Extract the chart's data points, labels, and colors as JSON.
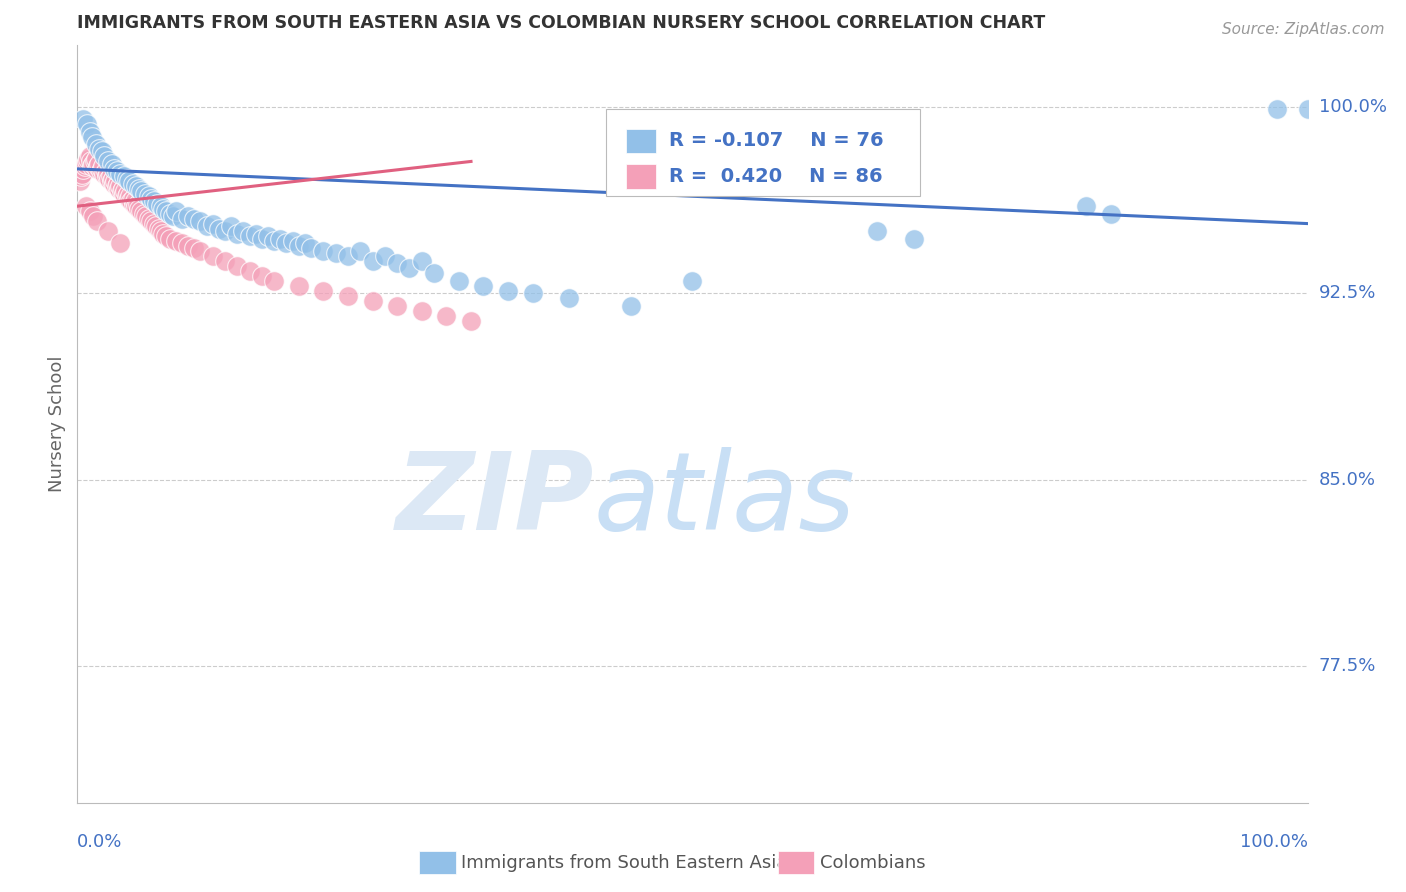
{
  "title": "IMMIGRANTS FROM SOUTH EASTERN ASIA VS COLOMBIAN NURSERY SCHOOL CORRELATION CHART",
  "source": "Source: ZipAtlas.com",
  "ylabel": "Nursery School",
  "ytick_labels": [
    "100.0%",
    "92.5%",
    "85.0%",
    "77.5%"
  ],
  "ytick_values": [
    1.0,
    0.925,
    0.85,
    0.775
  ],
  "xrange": [
    0.0,
    1.0
  ],
  "yrange": [
    0.72,
    1.025
  ],
  "legend_blue_r": "-0.107",
  "legend_blue_n": "76",
  "legend_pink_r": "0.420",
  "legend_pink_n": "86",
  "blue_color": "#92C0E8",
  "pink_color": "#F4A0B8",
  "blue_line_color": "#4472C4",
  "pink_line_color": "#E06080",
  "axis_color": "#4472c4",
  "grid_color": "#cccccc",
  "title_color": "#333333",
  "watermark_color": "#dce8f5",
  "blue_scatter_x": [
    0.005,
    0.008,
    0.01,
    0.012,
    0.015,
    0.018,
    0.02,
    0.022,
    0.025,
    0.028,
    0.03,
    0.032,
    0.035,
    0.038,
    0.04,
    0.042,
    0.045,
    0.048,
    0.05,
    0.052,
    0.055,
    0.058,
    0.06,
    0.062,
    0.065,
    0.068,
    0.07,
    0.072,
    0.075,
    0.078,
    0.08,
    0.085,
    0.09,
    0.095,
    0.1,
    0.105,
    0.11,
    0.115,
    0.12,
    0.125,
    0.13,
    0.135,
    0.14,
    0.145,
    0.15,
    0.155,
    0.16,
    0.165,
    0.17,
    0.175,
    0.18,
    0.185,
    0.19,
    0.2,
    0.21,
    0.22,
    0.23,
    0.24,
    0.25,
    0.26,
    0.27,
    0.28,
    0.29,
    0.31,
    0.33,
    0.35,
    0.37,
    0.4,
    0.45,
    0.5,
    0.65,
    0.68,
    0.82,
    0.84,
    0.975,
    1.0
  ],
  "blue_scatter_y": [
    0.995,
    0.993,
    0.99,
    0.988,
    0.985,
    0.983,
    0.982,
    0.98,
    0.978,
    0.977,
    0.975,
    0.974,
    0.973,
    0.972,
    0.971,
    0.97,
    0.969,
    0.968,
    0.967,
    0.966,
    0.965,
    0.964,
    0.963,
    0.962,
    0.961,
    0.96,
    0.959,
    0.958,
    0.957,
    0.956,
    0.958,
    0.955,
    0.956,
    0.955,
    0.954,
    0.952,
    0.953,
    0.951,
    0.95,
    0.952,
    0.949,
    0.95,
    0.948,
    0.949,
    0.947,
    0.948,
    0.946,
    0.947,
    0.945,
    0.946,
    0.944,
    0.945,
    0.943,
    0.942,
    0.941,
    0.94,
    0.942,
    0.938,
    0.94,
    0.937,
    0.935,
    0.938,
    0.933,
    0.93,
    0.928,
    0.926,
    0.925,
    0.923,
    0.92,
    0.93,
    0.95,
    0.947,
    0.96,
    0.957,
    0.999,
    0.999
  ],
  "pink_scatter_x": [
    0.002,
    0.003,
    0.004,
    0.005,
    0.006,
    0.007,
    0.008,
    0.009,
    0.01,
    0.011,
    0.012,
    0.013,
    0.014,
    0.015,
    0.016,
    0.017,
    0.018,
    0.019,
    0.02,
    0.021,
    0.022,
    0.023,
    0.024,
    0.025,
    0.026,
    0.027,
    0.028,
    0.029,
    0.03,
    0.031,
    0.032,
    0.033,
    0.034,
    0.035,
    0.036,
    0.037,
    0.038,
    0.039,
    0.04,
    0.041,
    0.042,
    0.043,
    0.044,
    0.045,
    0.046,
    0.047,
    0.048,
    0.049,
    0.05,
    0.052,
    0.054,
    0.056,
    0.058,
    0.06,
    0.062,
    0.064,
    0.066,
    0.068,
    0.07,
    0.072,
    0.075,
    0.08,
    0.085,
    0.09,
    0.095,
    0.1,
    0.11,
    0.12,
    0.13,
    0.14,
    0.15,
    0.16,
    0.18,
    0.2,
    0.22,
    0.24,
    0.26,
    0.28,
    0.3,
    0.32,
    0.007,
    0.01,
    0.013,
    0.016,
    0.025,
    0.035
  ],
  "pink_scatter_y": [
    0.97,
    0.972,
    0.973,
    0.975,
    0.976,
    0.977,
    0.978,
    0.979,
    0.98,
    0.978,
    0.976,
    0.977,
    0.978,
    0.979,
    0.975,
    0.976,
    0.977,
    0.974,
    0.975,
    0.976,
    0.973,
    0.974,
    0.972,
    0.973,
    0.971,
    0.972,
    0.97,
    0.971,
    0.969,
    0.97,
    0.968,
    0.969,
    0.967,
    0.968,
    0.966,
    0.967,
    0.965,
    0.966,
    0.964,
    0.965,
    0.963,
    0.964,
    0.962,
    0.963,
    0.961,
    0.962,
    0.96,
    0.961,
    0.959,
    0.958,
    0.957,
    0.956,
    0.955,
    0.954,
    0.953,
    0.952,
    0.951,
    0.95,
    0.949,
    0.948,
    0.947,
    0.946,
    0.945,
    0.944,
    0.943,
    0.942,
    0.94,
    0.938,
    0.936,
    0.934,
    0.932,
    0.93,
    0.928,
    0.926,
    0.924,
    0.922,
    0.92,
    0.918,
    0.916,
    0.914,
    0.96,
    0.958,
    0.956,
    0.954,
    0.95,
    0.945
  ],
  "blue_trend_x": [
    0.0,
    1.0
  ],
  "blue_trend_y": [
    0.975,
    0.953
  ],
  "pink_trend_x": [
    0.0,
    0.32
  ],
  "pink_trend_y": [
    0.96,
    0.978
  ]
}
